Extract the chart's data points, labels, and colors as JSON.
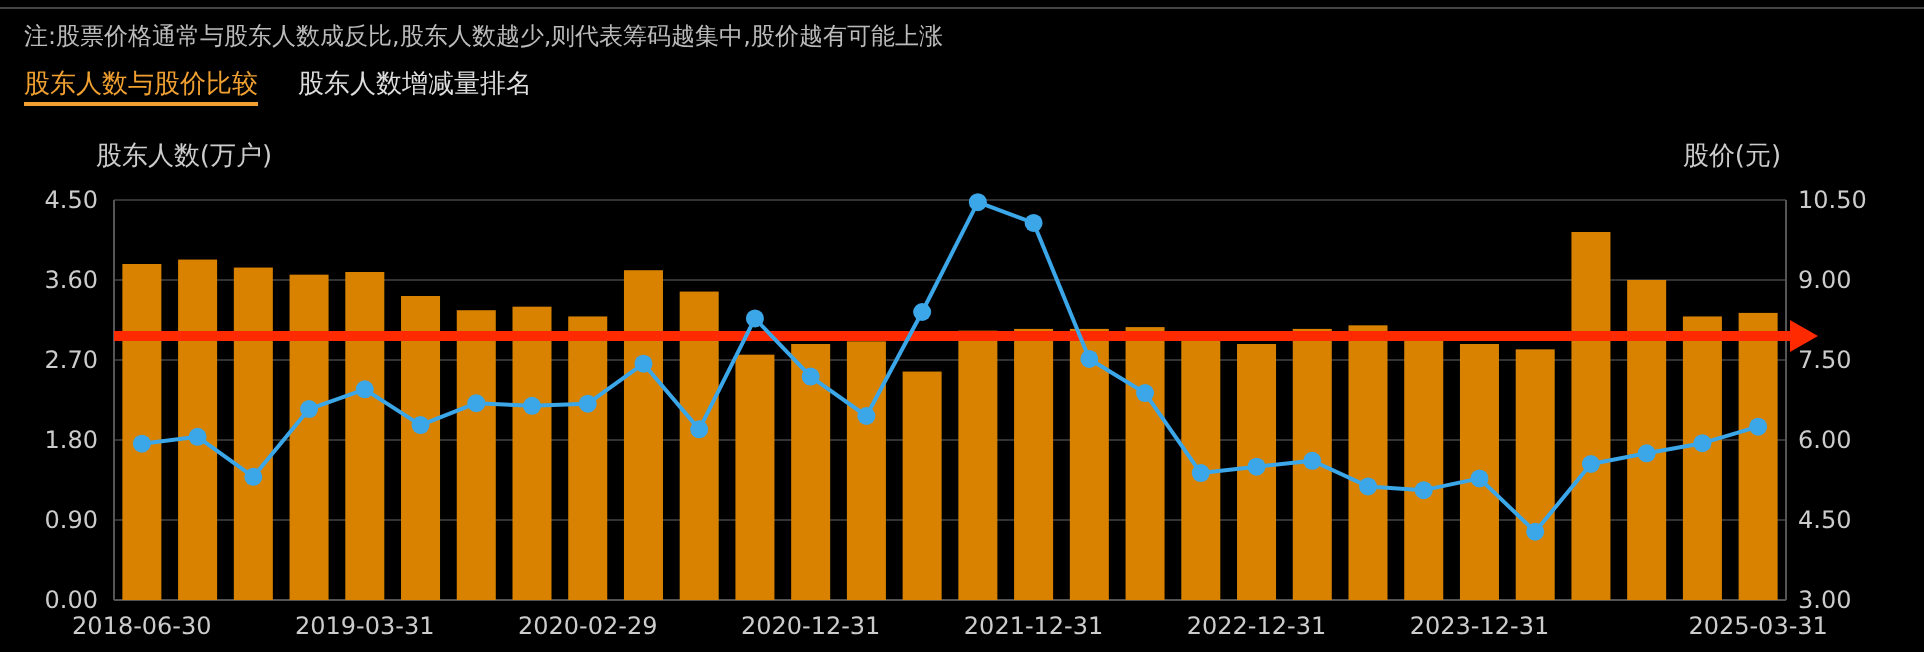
{
  "chart_data": {
    "type": "bar",
    "annotations": [
      "注:股票价格通常与股东人数成反比,股东人数越少,则代表筹码越集中,股价越有可能上涨",
      "股东人数与股价比较",
      "股东人数增减量排名"
    ],
    "ylabel": "股东人数(万户)",
    "y2label": "股价(元)",
    "categories": [
      "2018-06-30",
      null,
      null,
      null,
      "2019-03-31",
      null,
      null,
      null,
      "2020-02-29",
      null,
      null,
      null,
      "2020-12-31",
      null,
      null,
      null,
      "2021-12-31",
      null,
      null,
      null,
      "2022-12-31",
      null,
      null,
      null,
      "2023-12-31",
      null,
      null,
      null,
      null,
      "2025-03-31"
    ],
    "series": [
      {
        "color": "#d98200",
        "values": [
          3.78,
          3.83,
          3.74,
          3.66,
          3.69,
          3.42,
          3.26,
          3.3,
          3.19,
          3.71,
          3.47,
          2.76,
          2.88,
          2.91,
          2.57,
          3.03,
          3.05,
          3.05,
          3.07,
          2.95,
          2.88,
          3.05,
          3.09,
          2.95,
          2.88,
          2.82,
          4.14,
          3.6,
          3.19,
          3.23
        ]
      },
      {
        "type": "line",
        "axis": "y2",
        "color": "#3ba6e8",
        "marker": "circle",
        "values": [
          5.93,
          6.06,
          5.31,
          6.58,
          6.95,
          6.28,
          6.69,
          6.64,
          6.68,
          7.43,
          6.2,
          8.28,
          7.19,
          6.45,
          8.4,
          10.46,
          10.07,
          7.52,
          6.88,
          5.38,
          5.5,
          5.61,
          5.13,
          5.06,
          5.28,
          4.28,
          5.55,
          5.75,
          5.94,
          6.25
        ]
      }
    ],
    "ylim": [
      0,
      4.5
    ],
    "yticks": [
      {
        "value": 0,
        "label": "0.00"
      },
      {
        "value": 0.9,
        "label": "0.90"
      },
      {
        "value": 1.8,
        "label": "1.80"
      },
      {
        "value": 2.7,
        "label": "2.70"
      },
      {
        "value": 3.6,
        "label": "3.60"
      },
      {
        "value": 4.5,
        "label": "4.50"
      }
    ],
    "y2lim": [
      3,
      10.5
    ],
    "y2ticks": [
      {
        "value": 3,
        "label": "3.00"
      },
      {
        "value": 4.5,
        "label": "4.50"
      },
      {
        "value": 6,
        "label": "6.00"
      },
      {
        "value": 7.5,
        "label": "7.50"
      },
      {
        "value": 9,
        "label": "9.00"
      },
      {
        "value": 10.5,
        "label": "10.50"
      }
    ],
    "ref_lines": [
      {
        "axis": "y",
        "value": 2.97,
        "color": "#ff2a00"
      }
    ],
    "grid": "y"
  }
}
